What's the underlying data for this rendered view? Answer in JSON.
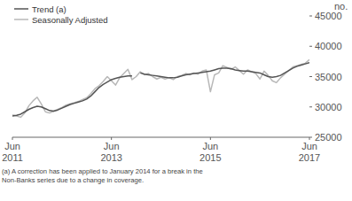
{
  "chart_data": {
    "type": "line",
    "y_label": "no.",
    "footnote": "(a) A correction has been applied to January 2014 for a break in the Non-Banks series due to a change in coverage.",
    "categories": [
      "Jun 2011",
      null,
      null,
      null,
      null,
      null,
      null,
      null,
      null,
      null,
      null,
      null,
      null,
      null,
      null,
      null,
      null,
      null,
      null,
      null,
      null,
      null,
      null,
      null,
      "Jun 2013",
      null,
      null,
      null,
      null,
      null,
      null,
      null,
      null,
      null,
      null,
      null,
      null,
      null,
      null,
      null,
      null,
      null,
      null,
      null,
      null,
      null,
      null,
      null,
      "Jun 2015",
      null,
      null,
      null,
      null,
      null,
      null,
      null,
      null,
      null,
      null,
      null,
      null,
      null,
      null,
      null,
      null,
      null,
      null,
      null,
      null,
      null,
      null,
      null,
      "Jun 2017"
    ],
    "series": [
      {
        "name": "Trend (a)",
        "color": "#555555",
        "values": [
          28500,
          28600,
          28800,
          29200,
          29600,
          29900,
          30100,
          30000,
          29700,
          29400,
          29300,
          29500,
          29800,
          30100,
          30400,
          30600,
          30800,
          31000,
          31300,
          31800,
          32500,
          33200,
          33700,
          34100,
          34500,
          34700,
          34900,
          35000,
          35100,
          35100,
          null,
          35600,
          35400,
          35300,
          35200,
          35100,
          35000,
          34900,
          34800,
          34800,
          34900,
          35100,
          35300,
          35400,
          35500,
          35600,
          35700,
          35800,
          35900,
          36100,
          36300,
          36400,
          36400,
          36300,
          36100,
          36000,
          35900,
          35900,
          35800,
          35700,
          35600,
          35300,
          35000,
          34900,
          35000,
          35200,
          35600,
          36000,
          36400,
          36700,
          36900,
          37100,
          37300
        ]
      },
      {
        "name": "Seasonally Adjusted",
        "color": "#b8b8b8",
        "values": [
          28700,
          28500,
          28300,
          29000,
          30200,
          31000,
          31600,
          30500,
          29200,
          29000,
          29300,
          29600,
          29900,
          30300,
          30500,
          30700,
          30900,
          31200,
          31500,
          32200,
          33000,
          33500,
          34200,
          35000,
          34300,
          33600,
          34800,
          35500,
          36200,
          34500,
          35000,
          35800,
          35300,
          35500,
          35000,
          34600,
          34900,
          34600,
          34800,
          34500,
          35000,
          35200,
          35500,
          35300,
          35600,
          35400,
          35900,
          36100,
          32500,
          35300,
          35600,
          36800,
          36500,
          36200,
          36600,
          36000,
          35400,
          36100,
          35800,
          35500,
          34600,
          35900,
          35200,
          34300,
          34000,
          34800,
          35400,
          36000,
          36600,
          36800,
          37000,
          37200,
          37800
        ]
      }
    ],
    "ylim": [
      25000,
      45000
    ],
    "yticks": [
      25000,
      30000,
      35000,
      40000,
      45000
    ],
    "grid": false,
    "legend": "upper left"
  }
}
